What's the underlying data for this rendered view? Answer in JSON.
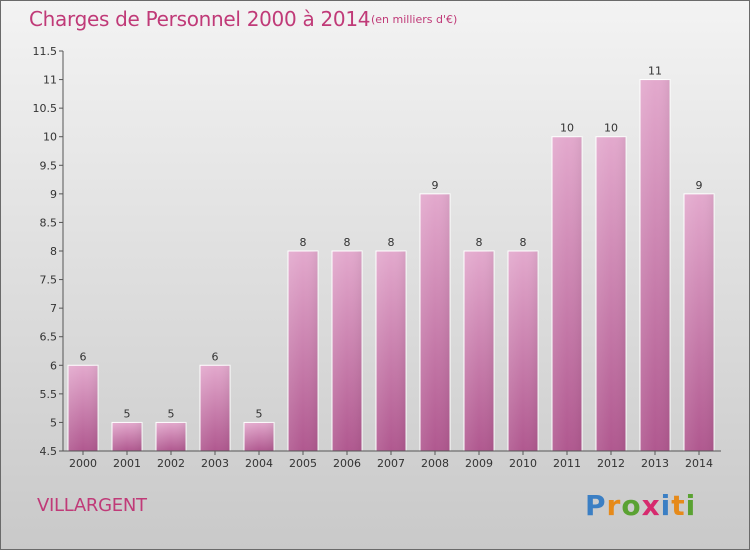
{
  "header": {
    "title": "Charges de Personnel 2000 à 2014",
    "subtitle": "(en milliers d'€)"
  },
  "footer": {
    "town": "VILLARGENT",
    "logo_text": "Proxiti",
    "logo_letters": [
      {
        "ch": "P",
        "color": "#3b7fc4"
      },
      {
        "ch": "r",
        "color": "#e68a1a"
      },
      {
        "ch": "o",
        "color": "#5aa232"
      },
      {
        "ch": "x",
        "color": "#d62a6e"
      },
      {
        "ch": "i",
        "color": "#3b7fc4"
      },
      {
        "ch": "t",
        "color": "#e68a1a"
      },
      {
        "ch": "i",
        "color": "#5aa232"
      }
    ]
  },
  "colors": {
    "accent": "#c03a78",
    "bar_top": "#e3a9cd",
    "bar_bottom": "#b0588f",
    "axis": "#555555"
  },
  "chart_data": {
    "type": "bar",
    "categories": [
      "2000",
      "2001",
      "2002",
      "2003",
      "2004",
      "2005",
      "2006",
      "2007",
      "2008",
      "2009",
      "2010",
      "2011",
      "2012",
      "2013",
      "2014"
    ],
    "values": [
      6,
      5,
      5,
      6,
      5,
      8,
      8,
      8,
      9,
      8,
      8,
      10,
      10,
      11,
      9
    ],
    "data_labels": [
      "6",
      "5",
      "5",
      "6",
      "5",
      "8",
      "8",
      "8",
      "9",
      "8",
      "8",
      "10",
      "10",
      "11",
      "9"
    ],
    "ylim": [
      4.5,
      11.5
    ],
    "yticks": [
      "4.5",
      "5",
      "5.5",
      "6",
      "6.5",
      "7",
      "7.5",
      "8",
      "8.5",
      "9",
      "9.5",
      "10",
      "10.5",
      "11",
      "11.5"
    ],
    "grid": false,
    "legend": "none"
  }
}
